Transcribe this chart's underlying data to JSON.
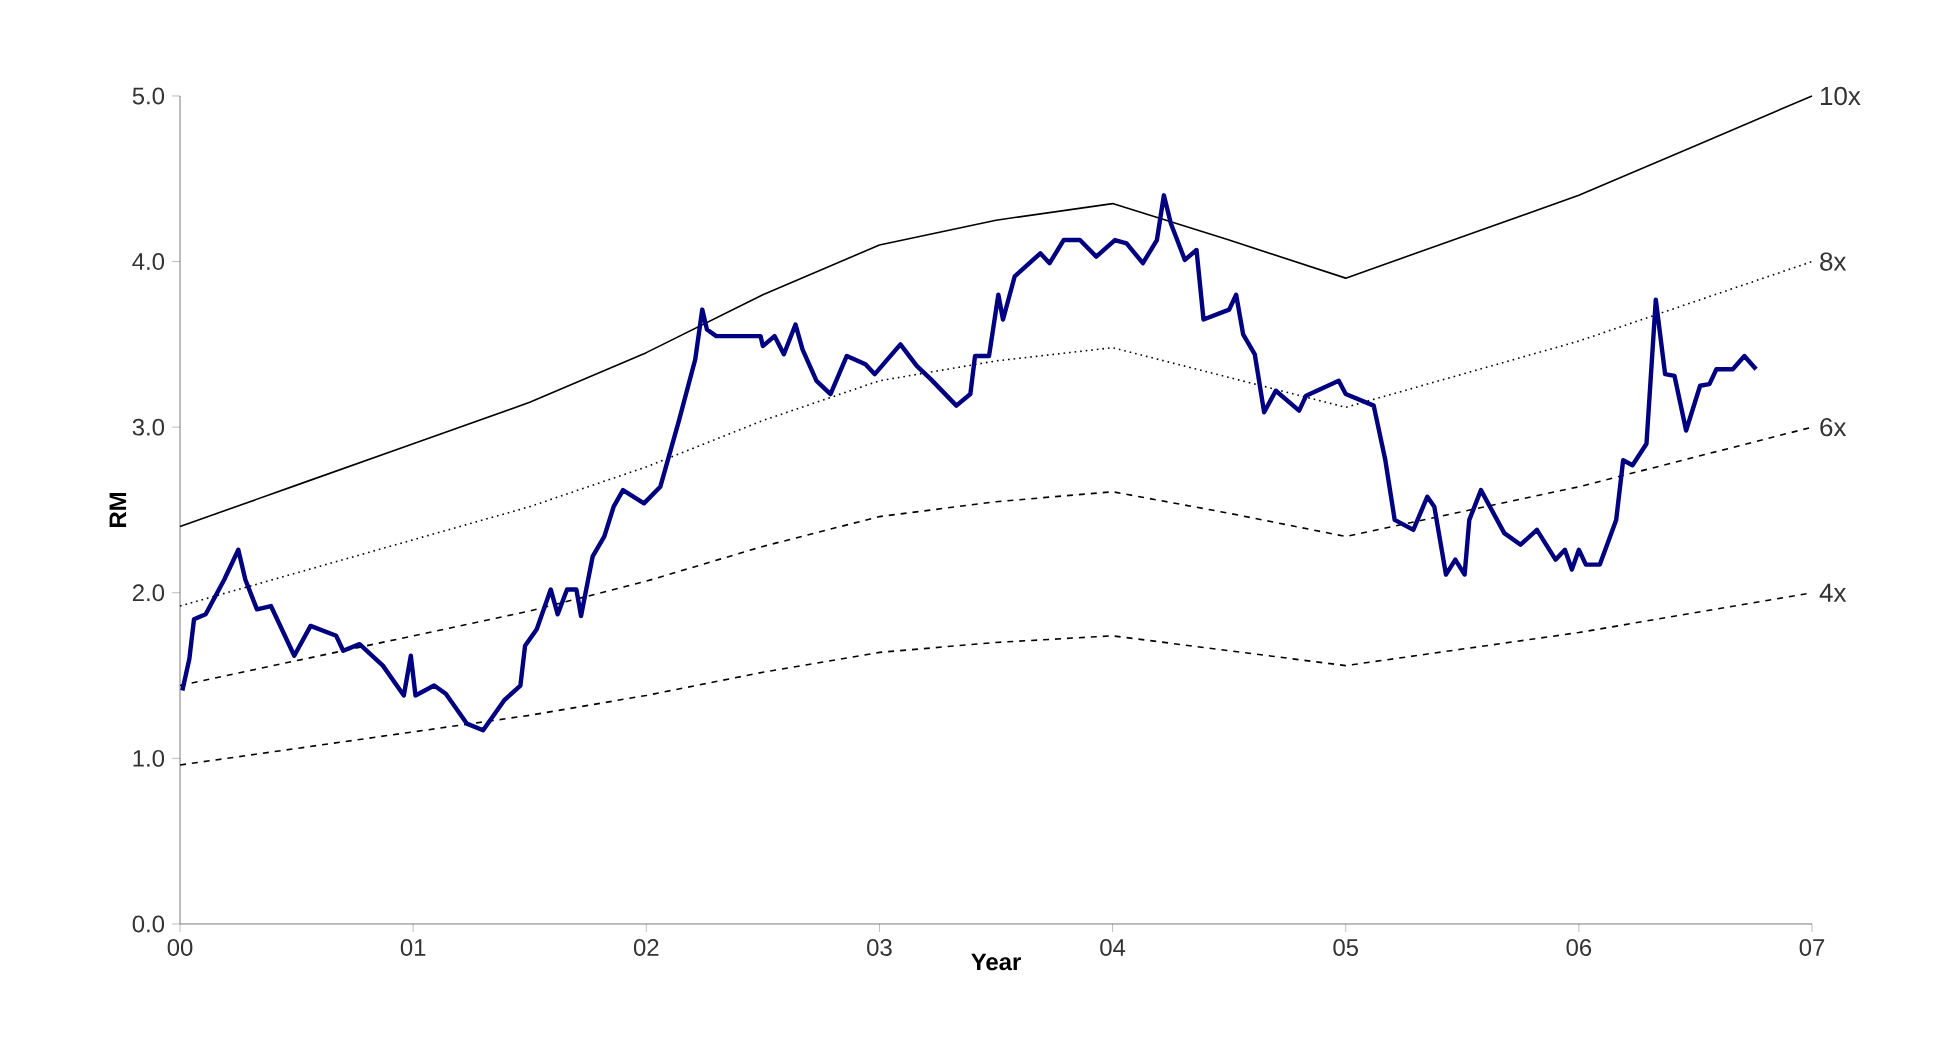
{
  "chart_data": {
    "type": "line",
    "xlabel": "Year",
    "ylabel": "RM",
    "xlim": [
      0,
      7
    ],
    "ylim": [
      0,
      5
    ],
    "xticks": [
      {
        "value": 0,
        "label": "00"
      },
      {
        "value": 1,
        "label": "01"
      },
      {
        "value": 2,
        "label": "02"
      },
      {
        "value": 3,
        "label": "03"
      },
      {
        "value": 4,
        "label": "04"
      },
      {
        "value": 5,
        "label": "05"
      },
      {
        "value": 6,
        "label": "06"
      },
      {
        "value": 7,
        "label": "07"
      }
    ],
    "yticks": [
      {
        "value": 0,
        "label": "0.0"
      },
      {
        "value": 1,
        "label": "1.0"
      },
      {
        "value": 2,
        "label": "2.0"
      },
      {
        "value": 3,
        "label": "3.0"
      },
      {
        "value": 4,
        "label": "4.0"
      },
      {
        "value": 5,
        "label": "5.0"
      }
    ],
    "grid": false,
    "legend": false,
    "marker": "none",
    "series": [
      {
        "name": "10x",
        "color": "#000000",
        "line_style": "solid",
        "x": [
          0,
          0.5,
          1,
          1.5,
          2,
          2.5,
          3,
          3.5,
          4,
          4.5,
          5,
          5.5,
          6,
          6.5,
          7
        ],
        "values": [
          2.4,
          2.65,
          2.9,
          3.15,
          3.45,
          3.8,
          4.1,
          4.25,
          4.35,
          4.13,
          3.9,
          4.15,
          4.4,
          4.7,
          5.0
        ]
      },
      {
        "name": "8x",
        "color": "#000000",
        "line_style": "dotted",
        "x": [
          0,
          0.5,
          1,
          1.5,
          2,
          2.5,
          3,
          3.5,
          4,
          4.5,
          5,
          5.5,
          6,
          6.5,
          7
        ],
        "values": [
          1.92,
          2.12,
          2.32,
          2.52,
          2.76,
          3.04,
          3.28,
          3.4,
          3.48,
          3.3,
          3.12,
          3.32,
          3.52,
          3.76,
          4.0
        ]
      },
      {
        "name": "6x",
        "color": "#000000",
        "line_style": "dashed",
        "x": [
          0,
          0.5,
          1,
          1.5,
          2,
          2.5,
          3,
          3.5,
          4,
          4.5,
          5,
          5.5,
          6,
          6.5,
          7
        ],
        "values": [
          1.44,
          1.59,
          1.74,
          1.89,
          2.07,
          2.28,
          2.46,
          2.55,
          2.61,
          2.48,
          2.34,
          2.49,
          2.64,
          2.82,
          3.0
        ]
      },
      {
        "name": "4x",
        "color": "#000000",
        "line_style": "dashed",
        "x": [
          0,
          0.5,
          1,
          1.5,
          2,
          2.5,
          3,
          3.5,
          4,
          4.5,
          5,
          5.5,
          6,
          6.5,
          7
        ],
        "values": [
          0.96,
          1.06,
          1.16,
          1.26,
          1.38,
          1.52,
          1.64,
          1.7,
          1.74,
          1.65,
          1.56,
          1.66,
          1.76,
          1.88,
          2.0
        ]
      },
      {
        "color": "#000080",
        "line_style": "solid",
        "x": [
          0.01,
          0.04,
          0.06,
          0.11,
          0.19,
          0.25,
          0.28,
          0.33,
          0.39,
          0.49,
          0.56,
          0.67,
          0.7,
          0.77,
          0.87,
          0.96,
          0.99,
          1.01,
          1.09,
          1.14,
          1.23,
          1.3,
          1.39,
          1.46,
          1.48,
          1.53,
          1.59,
          1.62,
          1.66,
          1.7,
          1.72,
          1.77,
          1.82,
          1.86,
          1.9,
          1.99,
          2.06,
          2.14,
          2.21,
          2.24,
          2.26,
          2.3,
          2.49,
          2.5,
          2.55,
          2.59,
          2.64,
          2.67,
          2.73,
          2.79,
          2.86,
          2.94,
          2.98,
          3.09,
          3.16,
          3.22,
          3.33,
          3.39,
          3.41,
          3.47,
          3.51,
          3.53,
          3.58,
          3.69,
          3.73,
          3.79,
          3.86,
          3.93,
          4.01,
          4.06,
          4.13,
          4.19,
          4.22,
          4.25,
          4.31,
          4.36,
          4.39,
          4.5,
          4.53,
          4.56,
          4.61,
          4.65,
          4.7,
          4.8,
          4.83,
          4.97,
          5.0,
          5.12,
          5.17,
          5.21,
          5.29,
          5.35,
          5.38,
          5.43,
          5.47,
          5.51,
          5.53,
          5.58,
          5.68,
          5.75,
          5.82,
          5.9,
          5.94,
          5.97,
          6.0,
          6.03,
          6.09,
          6.16,
          6.19,
          6.23,
          6.29,
          6.33,
          6.37,
          6.41,
          6.46,
          6.52,
          6.56,
          6.59,
          6.66,
          6.71,
          6.76
        ],
        "values": [
          1.41,
          1.6,
          1.84,
          1.87,
          2.08,
          2.26,
          2.08,
          1.9,
          1.92,
          1.62,
          1.8,
          1.74,
          1.65,
          1.69,
          1.56,
          1.38,
          1.62,
          1.38,
          1.44,
          1.39,
          1.21,
          1.17,
          1.35,
          1.44,
          1.68,
          1.78,
          2.02,
          1.87,
          2.02,
          2.02,
          1.86,
          2.22,
          2.34,
          2.52,
          2.62,
          2.54,
          2.64,
          3.04,
          3.41,
          3.71,
          3.59,
          3.55,
          3.55,
          3.49,
          3.55,
          3.44,
          3.62,
          3.47,
          3.28,
          3.2,
          3.43,
          3.38,
          3.32,
          3.5,
          3.37,
          3.29,
          3.13,
          3.2,
          3.43,
          3.43,
          3.8,
          3.65,
          3.91,
          4.05,
          3.99,
          4.13,
          4.13,
          4.03,
          4.13,
          4.11,
          3.99,
          4.13,
          4.4,
          4.23,
          4.01,
          4.07,
          3.65,
          3.71,
          3.8,
          3.56,
          3.44,
          3.09,
          3.22,
          3.1,
          3.19,
          3.28,
          3.2,
          3.13,
          2.8,
          2.44,
          2.38,
          2.58,
          2.52,
          2.11,
          2.2,
          2.11,
          2.44,
          2.62,
          2.36,
          2.29,
          2.38,
          2.2,
          2.26,
          2.14,
          2.26,
          2.17,
          2.17,
          2.44,
          2.8,
          2.77,
          2.9,
          3.77,
          3.32,
          3.31,
          2.98,
          3.25,
          3.26,
          3.35,
          3.35,
          3.43,
          3.35
        ]
      }
    ]
  }
}
